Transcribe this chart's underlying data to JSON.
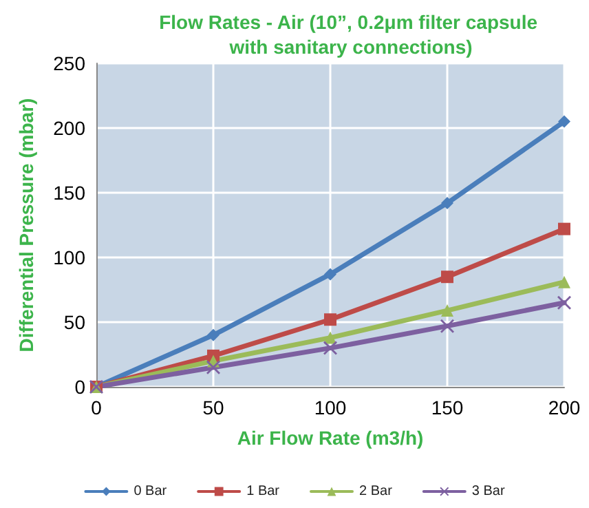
{
  "chart_data": {
    "type": "line",
    "title": "Flow Rates - Air (10”, 0.2μm filter capsule with sanitary connections)",
    "xlabel": "Air Flow Rate (m3/h)",
    "ylabel": "Differential Pressure (mbar)",
    "x": [
      0,
      50,
      100,
      150,
      200
    ],
    "series": [
      {
        "name": "0 Bar",
        "color": "#4a7ebb",
        "marker": "diamond",
        "values": [
          0,
          40,
          87,
          142,
          205
        ]
      },
      {
        "name": "1 Bar",
        "color": "#be4b48",
        "marker": "square",
        "values": [
          0,
          24,
          52,
          85,
          122
        ]
      },
      {
        "name": "2 Bar",
        "color": "#9bbb59",
        "marker": "triangle",
        "values": [
          0,
          20,
          38,
          59,
          81
        ]
      },
      {
        "name": "3 Bar",
        "color": "#7d60a0",
        "marker": "cross",
        "values": [
          0,
          15,
          30,
          47,
          65
        ]
      }
    ],
    "xlim": [
      0,
      200
    ],
    "xticks": [
      0,
      50,
      100,
      150,
      200
    ],
    "ylim": [
      0,
      250
    ],
    "yticks": [
      0,
      50,
      100,
      150,
      200,
      250
    ],
    "grid": true,
    "legend": "bottom",
    "line_style": "solid"
  }
}
